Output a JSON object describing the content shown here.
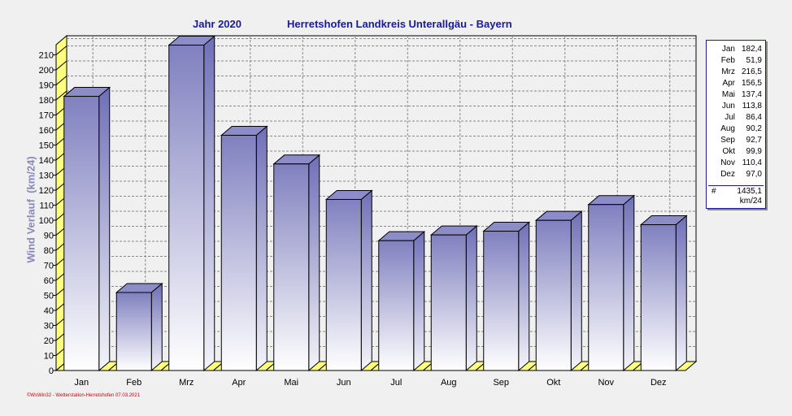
{
  "title": {
    "year": "Jahr  2020",
    "station": "Herretshofen Landkreis Unterallgäu - Bayern"
  },
  "footer": "©WsWin32 - Wetterstation-Herretshofen 07.03.2021",
  "colors": {
    "bar_top": "#8080c0",
    "bar_bottom": "#ffffff",
    "bar_side": "#6f6fb8",
    "bar_cap": "#8c8cc8",
    "floor": "#ffff80",
    "title": "#1a1a9a",
    "footer": "#cc0000",
    "ylabel": "#8888bb"
  },
  "legend": {
    "rows": [
      {
        "month": "Jan",
        "value": "182,4"
      },
      {
        "month": "Feb",
        "value": "51,9"
      },
      {
        "month": "Mrz",
        "value": "216,5"
      },
      {
        "month": "Apr",
        "value": "156,5"
      },
      {
        "month": "Mai",
        "value": "137,4"
      },
      {
        "month": "Jun",
        "value": "113,8"
      },
      {
        "month": "Jul",
        "value": "86,4"
      },
      {
        "month": "Aug",
        "value": "90,2"
      },
      {
        "month": "Sep",
        "value": "92,7"
      },
      {
        "month": "Okt",
        "value": "99,9"
      },
      {
        "month": "Nov",
        "value": "110,4"
      },
      {
        "month": "Dez",
        "value": "97,0"
      }
    ],
    "total_symbol": "#",
    "total_value": "1435,1",
    "total_unit": "km/24"
  },
  "chart_data": {
    "type": "bar",
    "title": "Jahr  2020   Herretshofen Landkreis Unterallgäu - Bayern",
    "xlabel": "",
    "ylabel": "Wind Verlauf  (km/24)",
    "categories": [
      "Jan",
      "Feb",
      "Mrz",
      "Apr",
      "Mai",
      "Jun",
      "Jul",
      "Aug",
      "Sep",
      "Okt",
      "Nov",
      "Dez"
    ],
    "values": [
      182.4,
      51.9,
      216.5,
      156.5,
      137.4,
      113.8,
      86.4,
      90.2,
      92.7,
      99.9,
      110.4,
      97.0
    ],
    "ylim": [
      0,
      210
    ],
    "yticks": [
      0,
      10,
      20,
      30,
      40,
      50,
      60,
      70,
      80,
      90,
      100,
      110,
      120,
      130,
      140,
      150,
      160,
      170,
      180,
      190,
      200,
      210
    ],
    "grid": true,
    "legend_position": "right"
  }
}
